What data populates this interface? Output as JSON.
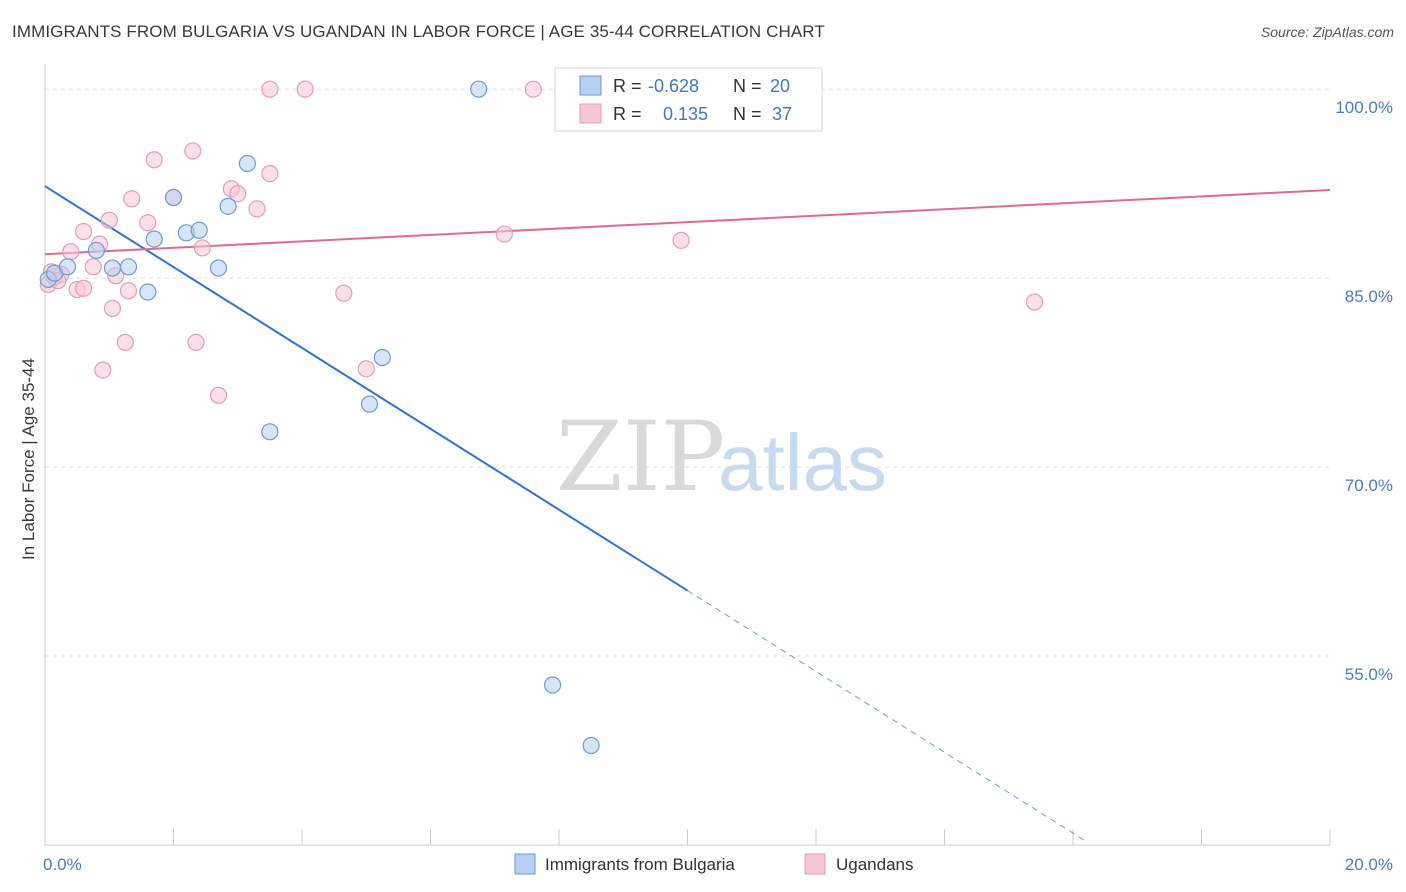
{
  "header": {
    "title": "IMMIGRANTS FROM BULGARIA VS UGANDAN IN LABOR FORCE | AGE 35-44 CORRELATION CHART",
    "source": "Source: ZipAtlas.com"
  },
  "watermark": {
    "zip": "ZIP",
    "atlas": "atlas"
  },
  "stats_box": {
    "rows": [
      {
        "r_label": "R =",
        "r_value": "-0.628",
        "n_label": "N =",
        "n_value": "20",
        "color": "#aac8f0"
      },
      {
        "r_label": "R =",
        "r_value": "0.135",
        "n_label": "N =",
        "n_value": "37",
        "color": "#f5b8cb"
      }
    ]
  },
  "legend": {
    "items": [
      {
        "label": "Immigrants from Bulgaria",
        "color": "#aac8f0"
      },
      {
        "label": "Ugandans",
        "color": "#f5b8cb"
      }
    ]
  },
  "colors": {
    "blue_stroke": "#6c9ad8",
    "blue_fill": "#b7cff2",
    "blue_line": "#2f74d0",
    "pink_stroke": "#e99ab4",
    "pink_fill": "#f7c6d5",
    "pink_line": "#e06a96",
    "grid": "#dddddd",
    "axis_text": "#4a7cc7"
  },
  "chart_data": {
    "type": "scatter",
    "title": "IMMIGRANTS FROM BULGARIA VS UGANDAN IN LABOR FORCE | AGE 35-44 CORRELATION CHART",
    "xlabel": "",
    "ylabel": "In Labor Force | Age 35-44",
    "xlim": [
      0,
      20
    ],
    "ylim": [
      40,
      102
    ],
    "x_tick_labels": [
      {
        "value": 0,
        "label": "0.0%"
      },
      {
        "value": 20,
        "label": "20.0%"
      }
    ],
    "y_tick_labels": [
      {
        "value": 100,
        "label": "100.0%"
      },
      {
        "value": 85,
        "label": "85.0%"
      },
      {
        "value": 70,
        "label": "70.0%"
      },
      {
        "value": 55,
        "label": "55.0%"
      }
    ],
    "grid": true,
    "legend_position": "bottom-center",
    "series": [
      {
        "name": "Immigrants from Bulgaria",
        "R": -0.628,
        "N": 20,
        "points": [
          [
            0.05,
            84.9
          ],
          [
            0.15,
            85.4
          ],
          [
            0.35,
            85.9
          ],
          [
            0.8,
            87.2
          ],
          [
            1.05,
            85.8
          ],
          [
            1.3,
            85.9
          ],
          [
            1.6,
            83.9
          ],
          [
            1.7,
            88.1
          ],
          [
            2.0,
            91.4
          ],
          [
            2.2,
            88.6
          ],
          [
            2.4,
            88.8
          ],
          [
            2.7,
            85.8
          ],
          [
            2.85,
            90.7
          ],
          [
            3.15,
            94.1
          ],
          [
            3.5,
            72.8
          ],
          [
            5.05,
            75.0
          ],
          [
            5.25,
            78.7
          ],
          [
            6.75,
            100.0
          ],
          [
            7.9,
            52.7
          ],
          [
            8.5,
            47.9
          ]
        ],
        "trend": {
          "x0": 0,
          "y0": 92.3,
          "x1": 10.0,
          "y1": 60.2,
          "dashed_to_x": 16.2,
          "dashed_to_y": 40.3
        }
      },
      {
        "name": "Ugandans",
        "R": 0.135,
        "N": 37,
        "points": [
          [
            0.05,
            84.5
          ],
          [
            0.15,
            85.1
          ],
          [
            0.25,
            85.3
          ],
          [
            0.4,
            87.1
          ],
          [
            0.5,
            84.1
          ],
          [
            0.6,
            84.2
          ],
          [
            0.6,
            88.7
          ],
          [
            0.75,
            85.9
          ],
          [
            0.85,
            87.7
          ],
          [
            0.9,
            77.7
          ],
          [
            1.0,
            89.6
          ],
          [
            1.05,
            82.6
          ],
          [
            1.1,
            85.2
          ],
          [
            1.25,
            79.9
          ],
          [
            1.3,
            84.0
          ],
          [
            1.35,
            91.3
          ],
          [
            1.6,
            89.4
          ],
          [
            1.7,
            94.4
          ],
          [
            2.0,
            91.4
          ],
          [
            2.3,
            95.1
          ],
          [
            2.35,
            79.9
          ],
          [
            2.45,
            87.4
          ],
          [
            2.7,
            75.7
          ],
          [
            2.9,
            92.1
          ],
          [
            3.0,
            91.7
          ],
          [
            3.3,
            90.5
          ],
          [
            3.5,
            93.3
          ],
          [
            3.5,
            100.0
          ],
          [
            4.05,
            100.0
          ],
          [
            4.65,
            83.8
          ],
          [
            5.0,
            77.8
          ],
          [
            7.15,
            88.5
          ],
          [
            7.6,
            100.0
          ],
          [
            9.9,
            88.0
          ],
          [
            15.4,
            83.1
          ],
          [
            0.1,
            85.5
          ],
          [
            0.2,
            84.8
          ]
        ],
        "trend": {
          "x0": 0,
          "y0": 86.9,
          "x1": 20,
          "y1": 92.0
        }
      }
    ]
  }
}
